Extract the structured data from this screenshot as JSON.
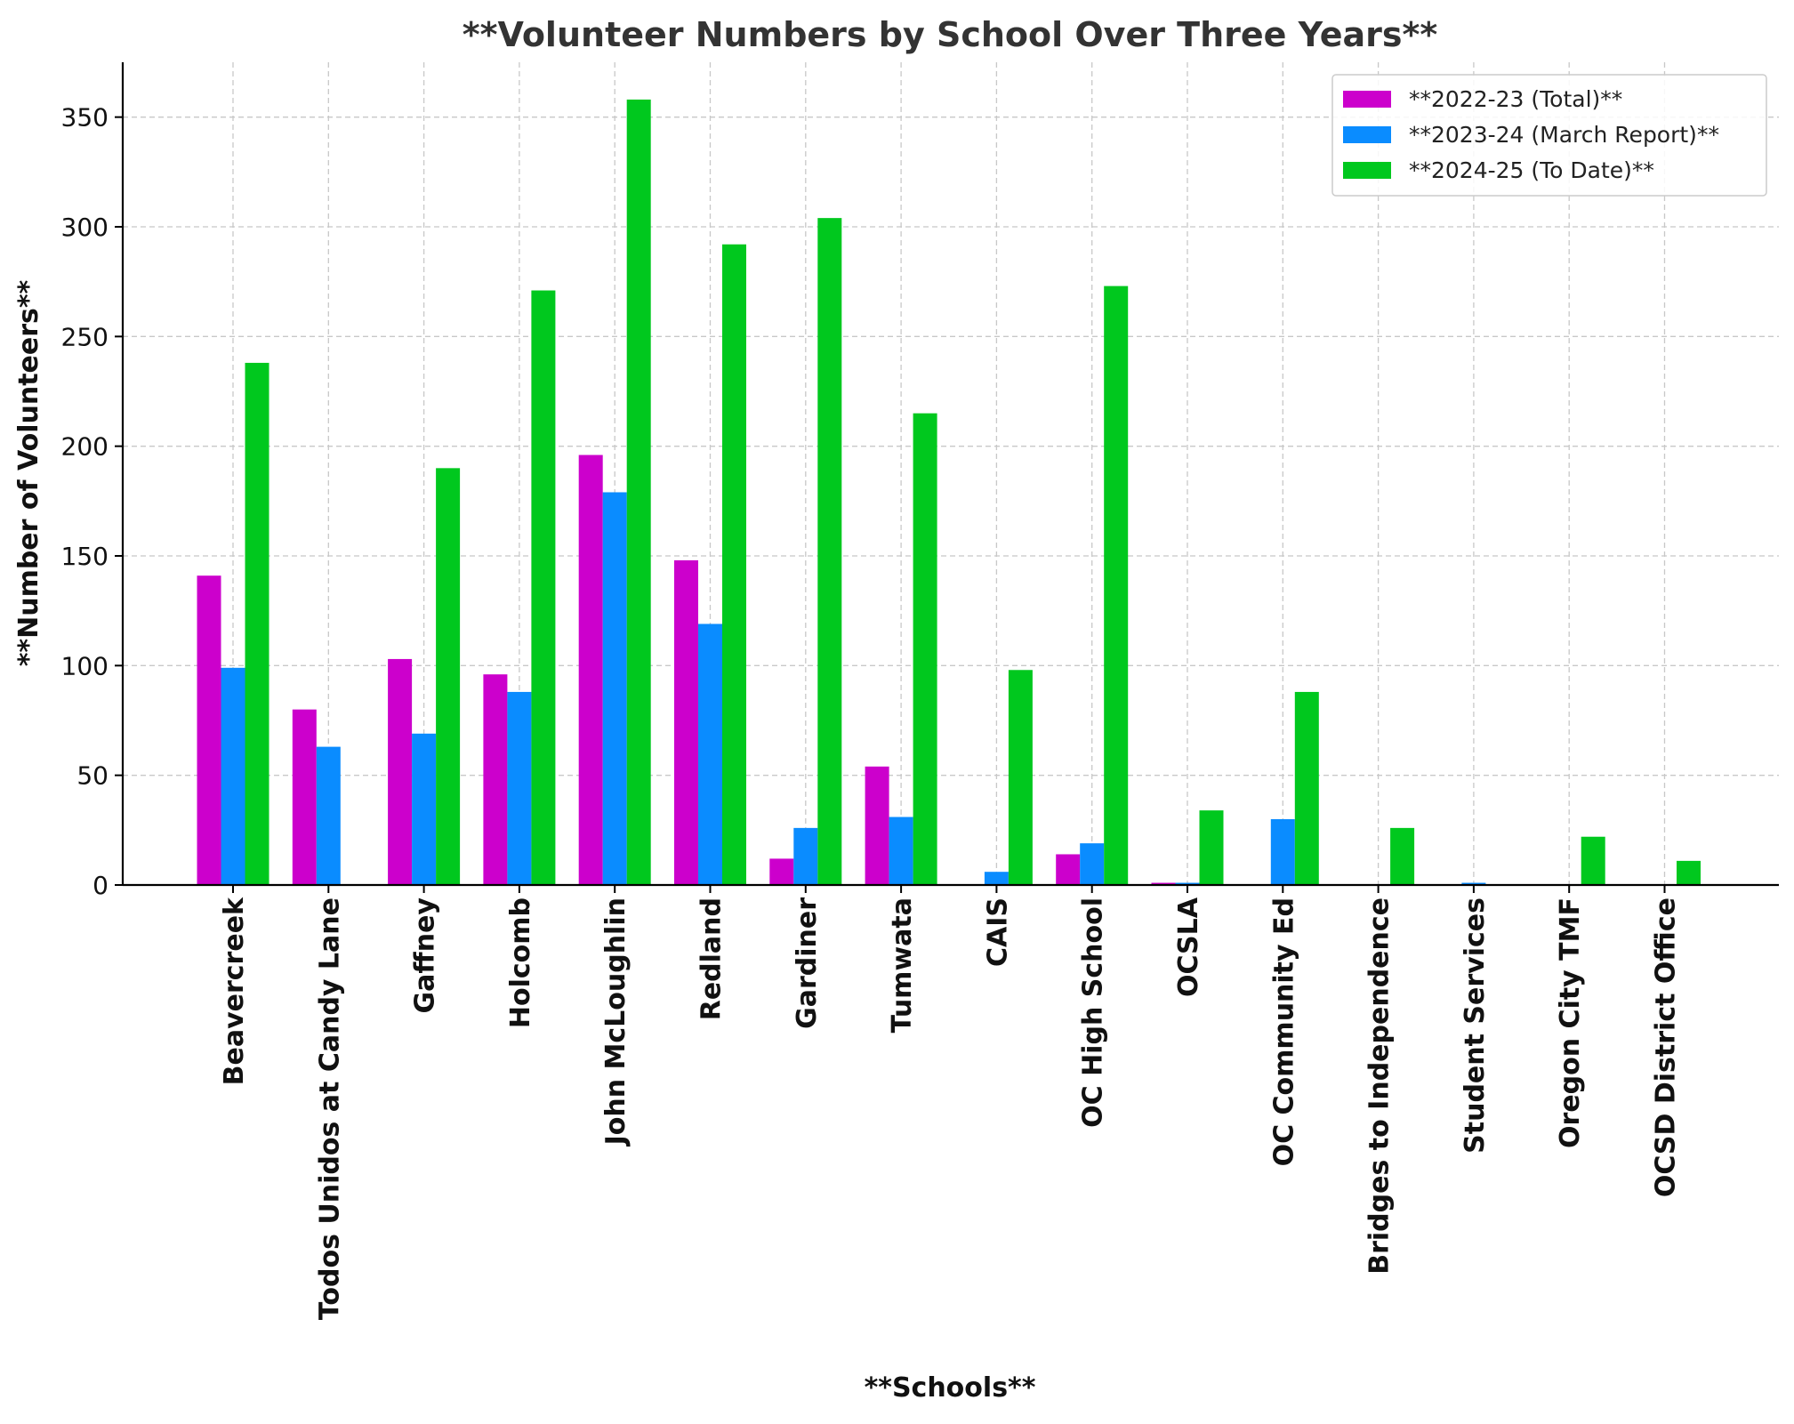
{
  "chart_data": {
    "type": "bar",
    "title": "**Volunteer Numbers by School Over Three Years**",
    "xlabel": "**Schools**",
    "ylabel": "**Number of Volunteers**",
    "ylim": [
      0,
      375
    ],
    "yticks": [
      0,
      50,
      100,
      150,
      200,
      250,
      300,
      350
    ],
    "grid": true,
    "legend_position": "top-right",
    "categories": [
      "Beavercreek",
      "Todos Unidos at Candy Lane",
      "Gaffney",
      "Holcomb",
      "John McLoughlin",
      "Redland",
      "Gardiner",
      "Tumwata",
      "CAIS",
      "OC High School",
      "OCSLA",
      "OC Community Ed",
      "Bridges to Independence",
      "Student Services",
      "Oregon City TMF",
      "OCSD District Office"
    ],
    "series": [
      {
        "name": "**2022-23 (Total)**",
        "color": "#cc00cc",
        "values": [
          141,
          80,
          103,
          96,
          196,
          148,
          12,
          54,
          0,
          14,
          1,
          0,
          0,
          0,
          0,
          0
        ]
      },
      {
        "name": "**2023-24 (March Report)**",
        "color": "#0a8cff",
        "values": [
          99,
          63,
          69,
          88,
          179,
          119,
          26,
          31,
          6,
          19,
          1,
          30,
          0,
          1,
          0,
          0
        ]
      },
      {
        "name": "**2024-25 (To Date)**",
        "color": "#00c81e",
        "values": [
          238,
          0,
          190,
          271,
          358,
          292,
          304,
          215,
          98,
          273,
          34,
          88,
          26,
          0,
          22,
          11
        ]
      }
    ]
  }
}
